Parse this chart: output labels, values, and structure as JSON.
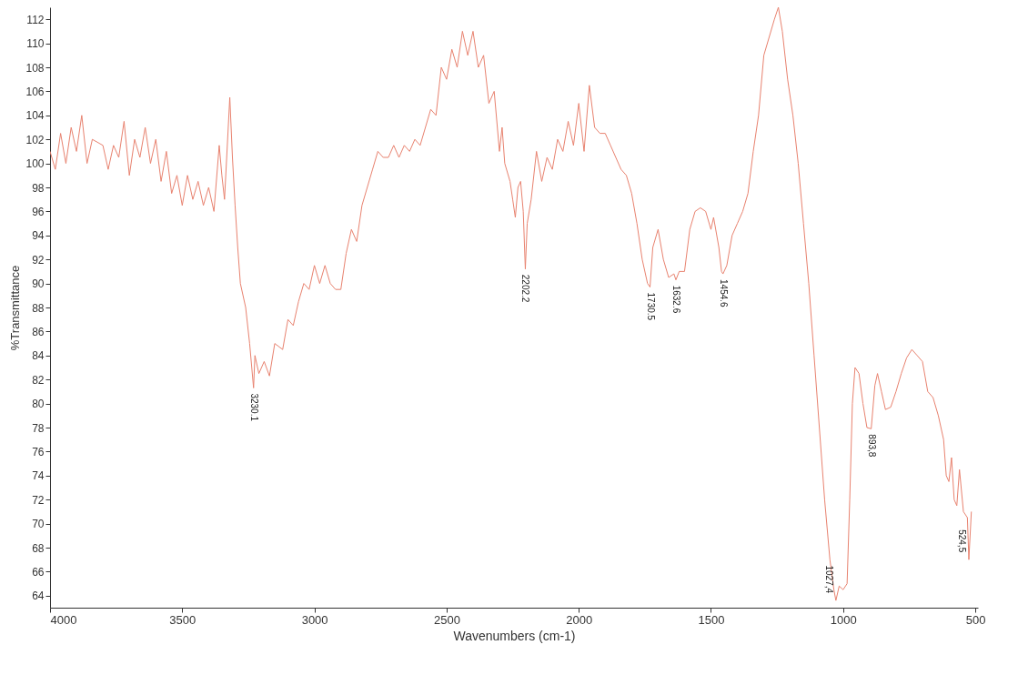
{
  "chart_data": {
    "type": "line",
    "xlabel": "Wavenumbers (cm-1)",
    "ylabel": "%Transmittance",
    "xlim": [
      4000,
      490
    ],
    "xticks": [
      4000,
      3500,
      3000,
      2500,
      2000,
      1500,
      1000,
      500
    ],
    "ylim": [
      63,
      113
    ],
    "yticks": [
      64,
      66,
      68,
      70,
      72,
      74,
      76,
      78,
      80,
      82,
      84,
      86,
      88,
      90,
      92,
      94,
      96,
      98,
      100,
      102,
      104,
      106,
      108,
      110,
      112
    ],
    "grid": false,
    "marker": "none",
    "line_style": "solid",
    "x": [
      4000,
      3980,
      3960,
      3940,
      3920,
      3900,
      3880,
      3860,
      3840,
      3800,
      3780,
      3760,
      3740,
      3720,
      3700,
      3680,
      3660,
      3640,
      3620,
      3600,
      3580,
      3560,
      3540,
      3520,
      3500,
      3480,
      3460,
      3440,
      3420,
      3400,
      3380,
      3360,
      3350,
      3340,
      3320,
      3310,
      3300,
      3290,
      3280,
      3260,
      3245,
      3230.1,
      3225,
      3210,
      3190,
      3170,
      3150,
      3120,
      3100,
      3080,
      3060,
      3040,
      3020,
      3000,
      2980,
      2960,
      2940,
      2920,
      2900,
      2880,
      2860,
      2840,
      2820,
      2800,
      2780,
      2760,
      2740,
      2720,
      2700,
      2680,
      2660,
      2640,
      2620,
      2600,
      2580,
      2560,
      2540,
      2520,
      2500,
      2480,
      2460,
      2440,
      2420,
      2400,
      2380,
      2360,
      2340,
      2320,
      2300,
      2290,
      2280,
      2260,
      2250,
      2240,
      2230,
      2220,
      2210,
      2202.2,
      2195,
      2180,
      2160,
      2140,
      2120,
      2100,
      2080,
      2060,
      2040,
      2020,
      2000,
      1980,
      1960,
      1940,
      1920,
      1900,
      1880,
      1860,
      1840,
      1820,
      1800,
      1780,
      1760,
      1740,
      1730.5,
      1720,
      1700,
      1680,
      1660,
      1640,
      1632.6,
      1620,
      1600,
      1580,
      1560,
      1540,
      1520,
      1500,
      1490,
      1470,
      1460,
      1454.6,
      1440,
      1420,
      1400,
      1380,
      1360,
      1340,
      1320,
      1300,
      1280,
      1260,
      1245,
      1230,
      1210,
      1190,
      1170,
      1150,
      1130,
      1110,
      1090,
      1070,
      1050,
      1035,
      1027.4,
      1015,
      1000,
      985,
      975,
      965,
      955,
      940,
      925,
      910,
      893.8,
      880,
      870,
      855,
      840,
      820,
      800,
      780,
      760,
      740,
      720,
      700,
      680,
      660,
      640,
      620,
      610,
      600,
      590,
      580,
      570,
      560,
      545,
      530,
      524.5,
      515
    ],
    "series": [
      {
        "color": "#e8826f",
        "values": [
          101,
          99.5,
          102.5,
          100,
          103,
          101,
          104,
          100,
          102,
          101.5,
          99.5,
          101.5,
          100.5,
          103.5,
          99,
          102,
          100.5,
          103,
          100,
          102,
          98.5,
          101,
          97.5,
          99,
          96.5,
          99,
          97,
          98.5,
          96.5,
          98,
          96,
          101.5,
          99,
          97,
          105.5,
          100.5,
          96.5,
          93,
          90,
          88,
          85,
          81.3,
          84,
          82.5,
          83.5,
          82.3,
          85,
          84.5,
          87,
          86.5,
          88.5,
          90,
          89.5,
          91.5,
          90,
          91.5,
          90,
          89.5,
          89.5,
          92.5,
          94.5,
          93.5,
          96.5,
          98,
          99.5,
          101,
          100.5,
          100.5,
          101.5,
          100.5,
          101.5,
          101,
          102,
          101.5,
          103,
          104.5,
          104,
          108,
          107,
          109.5,
          108,
          111,
          109,
          111,
          108,
          109,
          105,
          106,
          101,
          103,
          100,
          98.5,
          97,
          95.5,
          98,
          98.5,
          96,
          91.2,
          95,
          97,
          101,
          98.5,
          100.5,
          99.5,
          102,
          101,
          103.5,
          101.5,
          105,
          101,
          106.5,
          103,
          102.5,
          102.5,
          101.5,
          100.5,
          99.5,
          99,
          97.5,
          95,
          92,
          90,
          89.7,
          93,
          94.5,
          92,
          90.5,
          90.8,
          90.3,
          91,
          91,
          94.5,
          96,
          96.3,
          96,
          94.5,
          95.5,
          93,
          91,
          90.8,
          91.5,
          94,
          95,
          96,
          97.5,
          101,
          104,
          109,
          110.5,
          112,
          113,
          111,
          107,
          104,
          100,
          95,
          90,
          84,
          78,
          72,
          67,
          64.5,
          63.6,
          64.8,
          64.5,
          65,
          72,
          80,
          83,
          82.5,
          80,
          78,
          77.9,
          81.5,
          82.5,
          81,
          79.5,
          79.7,
          81,
          82.5,
          83.8,
          84.5,
          84,
          83.5,
          81,
          80.5,
          79,
          77,
          74,
          73.5,
          75.5,
          72,
          71.5,
          74.5,
          71,
          70.5,
          67,
          71
        ]
      }
    ],
    "annotations": [
      {
        "text": "3230.1",
        "x": 3230.1,
        "y": 81.3
      },
      {
        "text": "2202.2",
        "x": 2202.2,
        "y": 91.2
      },
      {
        "text": "1730.5",
        "x": 1730.5,
        "y": 89.7
      },
      {
        "text": "1632.6",
        "x": 1632.6,
        "y": 90.3
      },
      {
        "text": "1454.6",
        "x": 1454.6,
        "y": 90.8
      },
      {
        "text": "1027,4",
        "x": 1027.4,
        "y": 63.6
      },
      {
        "text": "893,8",
        "x": 893.8,
        "y": 77.9
      },
      {
        "text": "524,5",
        "x": 524.5,
        "y": 67
      }
    ]
  }
}
